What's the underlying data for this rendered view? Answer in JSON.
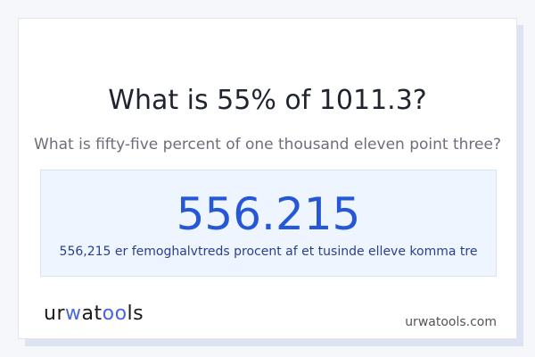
{
  "question": {
    "title": "What is 55% of 1011.3?",
    "subtitle": "What is fifty-five percent of one thousand eleven point three?"
  },
  "answer": {
    "value": "556.215",
    "words": "556,215 er femoghalvtreds procent af et tusinde elleve komma tre"
  },
  "footer": {
    "logo_text": "urwatools",
    "site": "urwatools.com"
  },
  "colors": {
    "accent": "#2557d6",
    "answer_bg": "#eef5ff",
    "logo_accent": "#4a63e0"
  }
}
